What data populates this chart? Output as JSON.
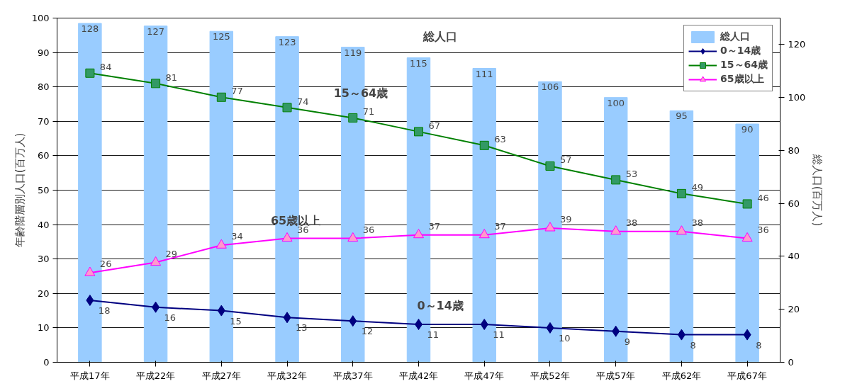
{
  "chart_data": {
    "type": "line",
    "categories": [
      "平成17年",
      "平成22年",
      "平成27年",
      "平成32年",
      "平成37年",
      "平成42年",
      "平成47年",
      "平成52年",
      "平成57年",
      "平成62年",
      "平成67年"
    ],
    "ylabel": "年齢階層別人口(百万人)",
    "y2label": "総人口(百万人)",
    "ylim": [
      0,
      100
    ],
    "yticks": [
      0,
      10,
      20,
      30,
      40,
      50,
      60,
      70,
      80,
      90,
      100
    ],
    "y2lim": [
      0,
      130
    ],
    "y2ticks": [
      0,
      20,
      40,
      60,
      80,
      100,
      120
    ],
    "grid": "y",
    "legend": "top right",
    "data_labels": true,
    "series": [
      {
        "name": "総人口",
        "type": "bar",
        "axis": "y2",
        "color": "#99ccff",
        "values": [
          128,
          127,
          125,
          123,
          119,
          115,
          111,
          106,
          100,
          95,
          90
        ]
      },
      {
        "name": "0～14歳",
        "marker": "diamond",
        "color": "#000080",
        "values": [
          18,
          16,
          15,
          13,
          12,
          11,
          11,
          10,
          9,
          8,
          8
        ]
      },
      {
        "name": "15～64歳",
        "marker": "square",
        "color": "#008000",
        "values": [
          84,
          81,
          77,
          74,
          71,
          67,
          63,
          57,
          53,
          49,
          46
        ]
      },
      {
        "name": "65歳以上",
        "marker": "triangle",
        "color": "#ff00ff",
        "values": [
          26,
          29,
          34,
          36,
          36,
          37,
          37,
          39,
          38,
          38,
          36
        ]
      }
    ],
    "annotations": [
      "総人口",
      "15～64歳",
      "65歳以上",
      "0～14歳"
    ]
  }
}
